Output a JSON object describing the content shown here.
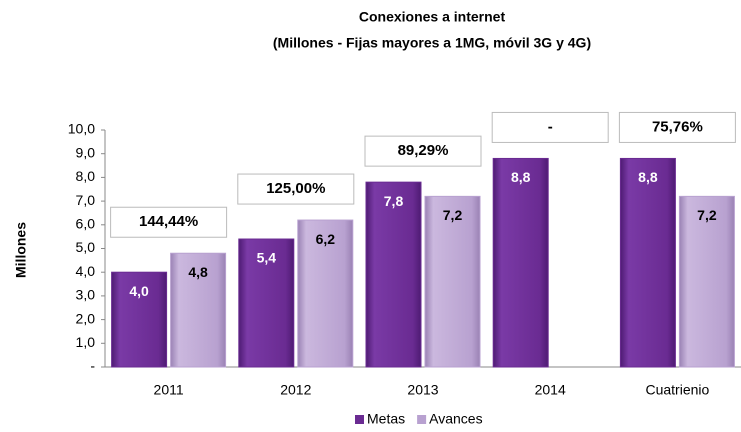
{
  "chart_data": {
    "type": "bar",
    "title": "Conexiones a internet",
    "subtitle": "(Millones - Fijas mayores a 1MG, móvil 3G y 4G)",
    "y_label": "Millones",
    "categories": [
      "2011",
      "2012",
      "2013",
      "2014",
      "Cuatrienio"
    ],
    "series": [
      {
        "name": "Metas",
        "color": "#6a2b92",
        "values": [
          4.0,
          5.4,
          7.8,
          8.8,
          8.8
        ],
        "value_labels": [
          "4,0",
          "5,4",
          "7,8",
          "8,8",
          "8,8"
        ]
      },
      {
        "name": "Avances",
        "color": "#b8a1d0",
        "values": [
          4.8,
          6.2,
          7.2,
          null,
          7.2
        ],
        "value_labels": [
          "4,8",
          "6,2",
          "7,2",
          null,
          "7,2"
        ]
      }
    ],
    "annotations": [
      "144,44%",
      "125,00%",
      "89,29%",
      "-",
      "75,76%"
    ],
    "ylim": [
      0,
      10
    ],
    "yticks": [
      {
        "value": 0,
        "label": "-"
      },
      {
        "value": 1,
        "label": "1,0"
      },
      {
        "value": 2,
        "label": "2,0"
      },
      {
        "value": 3,
        "label": "3,0"
      },
      {
        "value": 4,
        "label": "4,0"
      },
      {
        "value": 5,
        "label": "5,0"
      },
      {
        "value": 6,
        "label": "6,0"
      },
      {
        "value": 7,
        "label": "7,0"
      },
      {
        "value": 8,
        "label": "8,0"
      },
      {
        "value": 9,
        "label": "9,0"
      },
      {
        "value": 10,
        "label": "10,0"
      }
    ],
    "legend": "bottom"
  }
}
